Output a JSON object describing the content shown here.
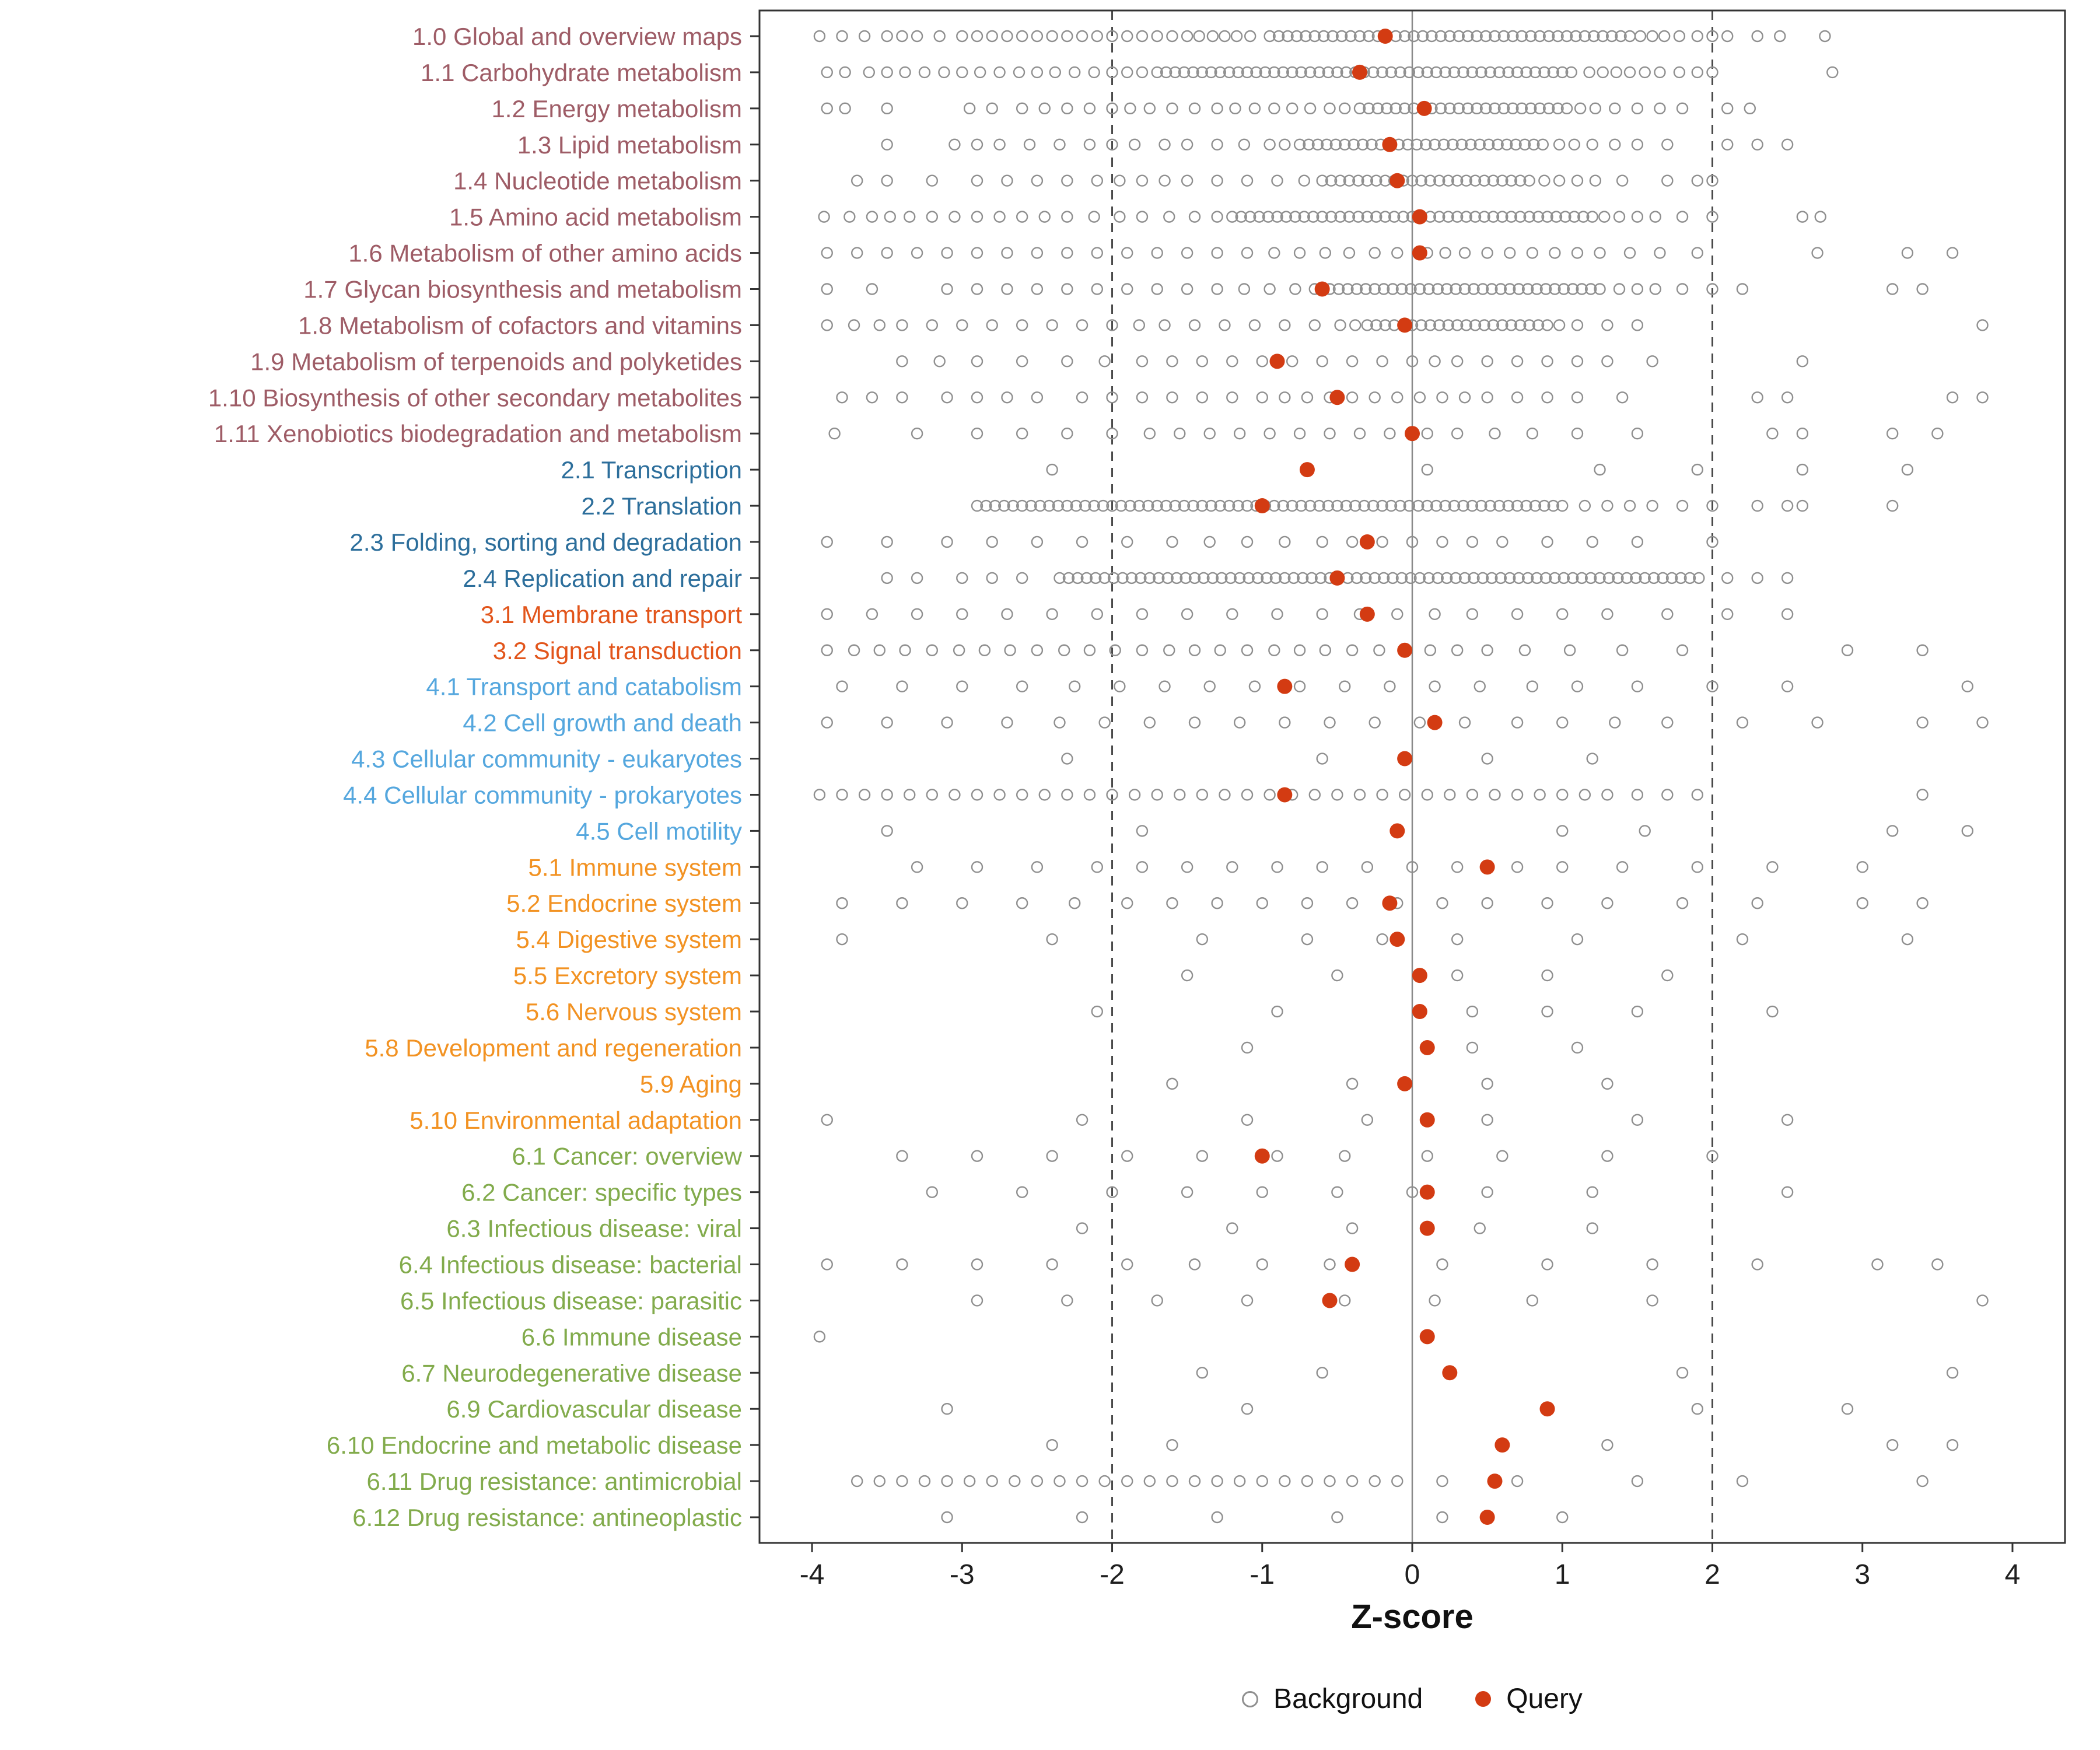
{
  "chart_data": {
    "type": "scatter",
    "subtype": "horizontal-dotplot",
    "title": "",
    "xlabel": "Z-score",
    "xlim": [
      -4.35,
      4.35
    ],
    "x_ticks": [
      -4,
      -3,
      -2,
      -1,
      0,
      1,
      2,
      3,
      4
    ],
    "reference_lines": {
      "solid": [
        0
      ],
      "dashed": [
        -2,
        2
      ]
    },
    "bg_dense_step": 0.06,
    "legend": [
      {
        "name": "Background",
        "marker": "open-circle",
        "color": "#8f8f8f"
      },
      {
        "name": "Query",
        "marker": "filled-circle",
        "color": "#d33b12"
      }
    ],
    "legend_position": "bottom",
    "group_colors": {
      "1": "#9e5c66",
      "2": "#2c6e9b",
      "3": "#e2551b",
      "4": "#55a7de",
      "5": "#f29222",
      "6": "#82ab4c"
    },
    "colors": {
      "background": "#8f8f8f",
      "query": "#d33b12",
      "dashed_line": "#4a4a4a",
      "zero_line": "#8a8a8a",
      "panel_border": "#333333",
      "tick_text": "#1f1f1f"
    },
    "rows": [
      {
        "label": "1.0 Global and overview maps",
        "group": "1",
        "query": -0.18,
        "bg_dense": [
          [
            -0.95,
            1.45
          ]
        ],
        "bg_scatter": [
          -3.95,
          -3.8,
          -3.65,
          -3.5,
          -3.4,
          -3.3,
          -3.15,
          -3.0,
          -2.9,
          -2.8,
          -2.7,
          -2.6,
          -2.5,
          -2.4,
          -2.3,
          -2.2,
          -2.1,
          -2.0,
          -1.9,
          -1.8,
          -1.7,
          -1.6,
          -1.5,
          -1.42,
          -1.33,
          -1.25,
          -1.17,
          -1.08,
          1.52,
          1.6,
          1.68,
          1.78,
          1.9,
          2.0,
          2.1,
          2.3,
          2.45,
          2.75
        ]
      },
      {
        "label": "1.1 Carbohydrate metabolism",
        "group": "1",
        "query": -0.35,
        "bg_dense": [
          [
            -1.7,
            1.1
          ]
        ],
        "bg_scatter": [
          -3.9,
          -3.78,
          -3.62,
          -3.5,
          -3.38,
          -3.25,
          -3.12,
          -3.0,
          -2.88,
          -2.75,
          -2.62,
          -2.5,
          -2.38,
          -2.25,
          -2.12,
          -2.0,
          -1.9,
          -1.8,
          1.18,
          1.27,
          1.36,
          1.45,
          1.55,
          1.65,
          1.78,
          1.9,
          2.0,
          2.8
        ]
      },
      {
        "label": "1.2 Energy metabolism",
        "group": "1",
        "query": 0.08,
        "bg_dense": [
          [
            -0.35,
            1.05
          ]
        ],
        "bg_scatter": [
          -3.9,
          -3.78,
          -3.5,
          -2.95,
          -2.8,
          -2.6,
          -2.45,
          -2.3,
          -2.15,
          -2.0,
          -1.88,
          -1.75,
          -1.6,
          -1.45,
          -1.3,
          -1.18,
          -1.05,
          -0.92,
          -0.8,
          -0.68,
          -0.55,
          -0.45,
          1.12,
          1.22,
          1.35,
          1.5,
          1.65,
          1.8,
          2.1,
          2.25
        ]
      },
      {
        "label": "1.3 Lipid metabolism",
        "group": "1",
        "query": -0.15,
        "bg_dense": [
          [
            -0.75,
            0.9
          ]
        ],
        "bg_scatter": [
          -3.5,
          -3.05,
          -2.9,
          -2.75,
          -2.55,
          -2.35,
          -2.15,
          -2.0,
          -1.85,
          -1.65,
          -1.5,
          -1.3,
          -1.12,
          -0.95,
          -0.85,
          0.98,
          1.08,
          1.2,
          1.35,
          1.5,
          1.7,
          2.1,
          2.3,
          2.5
        ]
      },
      {
        "label": "1.4 Nucleotide metabolism",
        "group": "1",
        "query": -0.1,
        "bg_dense": [
          [
            -0.6,
            0.8
          ]
        ],
        "bg_scatter": [
          -3.7,
          -3.5,
          -3.2,
          -2.9,
          -2.7,
          -2.5,
          -2.3,
          -2.1,
          -1.95,
          -1.8,
          -1.65,
          -1.5,
          -1.3,
          -1.1,
          -0.9,
          -0.72,
          0.88,
          0.98,
          1.1,
          1.22,
          1.4,
          1.7,
          1.9,
          2.0
        ]
      },
      {
        "label": "1.5 Amino acid metabolism",
        "group": "1",
        "query": 0.05,
        "bg_dense": [
          [
            -1.2,
            1.2
          ]
        ],
        "bg_scatter": [
          -3.92,
          -3.75,
          -3.6,
          -3.48,
          -3.35,
          -3.2,
          -3.05,
          -2.9,
          -2.75,
          -2.6,
          -2.45,
          -2.3,
          -2.12,
          -1.95,
          -1.8,
          -1.62,
          -1.45,
          -1.3,
          1.28,
          1.38,
          1.5,
          1.62,
          1.8,
          2.0,
          2.6,
          2.72
        ]
      },
      {
        "label": "1.6 Metabolism of other amino acids",
        "group": "1",
        "query": 0.05,
        "bg_dense": [],
        "bg_scatter": [
          -3.9,
          -3.7,
          -3.5,
          -3.3,
          -3.1,
          -2.9,
          -2.7,
          -2.5,
          -2.3,
          -2.1,
          -1.9,
          -1.7,
          -1.5,
          -1.3,
          -1.1,
          -0.92,
          -0.75,
          -0.58,
          -0.42,
          -0.25,
          -0.1,
          0.1,
          0.22,
          0.35,
          0.5,
          0.65,
          0.8,
          0.95,
          1.1,
          1.25,
          1.45,
          1.65,
          1.9,
          2.7,
          3.3,
          3.6
        ]
      },
      {
        "label": "1.7 Glycan biosynthesis and metabolism",
        "group": "1",
        "query": -0.6,
        "bg_dense": [
          [
            -0.55,
            1.3
          ]
        ],
        "bg_scatter": [
          -3.9,
          -3.6,
          -3.1,
          -2.9,
          -2.7,
          -2.5,
          -2.3,
          -2.1,
          -1.9,
          -1.7,
          -1.5,
          -1.3,
          -1.12,
          -0.95,
          -0.78,
          -0.65,
          1.38,
          1.5,
          1.62,
          1.8,
          2.0,
          2.2,
          3.2,
          3.4
        ]
      },
      {
        "label": "1.8 Metabolism of cofactors and vitamins",
        "group": "1",
        "query": -0.05,
        "bg_dense": [
          [
            -0.3,
            0.9
          ]
        ],
        "bg_scatter": [
          -3.9,
          -3.72,
          -3.55,
          -3.4,
          -3.2,
          -3.0,
          -2.8,
          -2.6,
          -2.4,
          -2.2,
          -2.0,
          -1.82,
          -1.65,
          -1.45,
          -1.25,
          -1.05,
          -0.85,
          -0.65,
          -0.48,
          -0.38,
          0.98,
          1.1,
          1.3,
          1.5,
          3.8
        ]
      },
      {
        "label": "1.9 Metabolism of terpenoids and polyketides",
        "group": "1",
        "query": -0.9,
        "bg_dense": [],
        "bg_scatter": [
          -3.4,
          -3.15,
          -2.9,
          -2.6,
          -2.3,
          -2.05,
          -1.8,
          -1.6,
          -1.4,
          -1.2,
          -1.0,
          -0.8,
          -0.6,
          -0.4,
          -0.2,
          0.0,
          0.15,
          0.3,
          0.5,
          0.7,
          0.9,
          1.1,
          1.3,
          1.6,
          2.6
        ]
      },
      {
        "label": "1.10 Biosynthesis of other secondary metabolites",
        "group": "1",
        "query": -0.5,
        "bg_dense": [],
        "bg_scatter": [
          -3.8,
          -3.6,
          -3.4,
          -3.1,
          -2.9,
          -2.7,
          -2.5,
          -2.2,
          -2.0,
          -1.8,
          -1.6,
          -1.4,
          -1.2,
          -1.0,
          -0.85,
          -0.7,
          -0.55,
          -0.4,
          -0.25,
          -0.1,
          0.05,
          0.2,
          0.35,
          0.5,
          0.7,
          0.9,
          1.1,
          1.4,
          2.3,
          2.5,
          3.6,
          3.8
        ]
      },
      {
        "label": "1.11 Xenobiotics biodegradation and metabolism",
        "group": "1",
        "query": 0.0,
        "bg_dense": [],
        "bg_scatter": [
          -3.85,
          -3.3,
          -2.9,
          -2.6,
          -2.3,
          -2.0,
          -1.75,
          -1.55,
          -1.35,
          -1.15,
          -0.95,
          -0.75,
          -0.55,
          -0.35,
          -0.15,
          0.1,
          0.3,
          0.55,
          0.8,
          1.1,
          1.5,
          2.4,
          2.6,
          3.2,
          3.5
        ]
      },
      {
        "label": "2.1 Transcription",
        "group": "2",
        "query": -0.7,
        "bg_dense": [],
        "bg_scatter": [
          -2.4,
          0.1,
          1.25,
          1.9,
          2.6,
          3.3
        ]
      },
      {
        "label": "2.2 Translation",
        "group": "2",
        "query": -1.0,
        "bg_dense": [
          [
            -2.9,
            1.05
          ]
        ],
        "bg_scatter": [
          1.15,
          1.3,
          1.45,
          1.6,
          1.8,
          2.0,
          2.3,
          2.5,
          2.6,
          3.2
        ]
      },
      {
        "label": "2.3 Folding, sorting and degradation",
        "group": "2",
        "query": -0.3,
        "bg_dense": [],
        "bg_scatter": [
          -3.9,
          -3.5,
          -3.1,
          -2.8,
          -2.5,
          -2.2,
          -1.9,
          -1.6,
          -1.35,
          -1.1,
          -0.85,
          -0.6,
          -0.4,
          -0.2,
          0.0,
          0.2,
          0.4,
          0.6,
          0.9,
          1.2,
          1.5,
          2.0
        ]
      },
      {
        "label": "2.4 Replication and repair",
        "group": "2",
        "query": -0.5,
        "bg_dense": [
          [
            -2.35,
            1.95
          ]
        ],
        "bg_scatter": [
          -3.5,
          -3.3,
          -3.0,
          -2.8,
          -2.6,
          2.1,
          2.3,
          2.5
        ]
      },
      {
        "label": "3.1 Membrane transport",
        "group": "3",
        "query": -0.3,
        "bg_dense": [],
        "bg_scatter": [
          -3.9,
          -3.6,
          -3.3,
          -3.0,
          -2.7,
          -2.4,
          -2.1,
          -1.8,
          -1.5,
          -1.2,
          -0.9,
          -0.6,
          -0.35,
          -0.1,
          0.15,
          0.4,
          0.7,
          1.0,
          1.3,
          1.7,
          2.1,
          2.5
        ]
      },
      {
        "label": "3.2 Signal transduction",
        "group": "3",
        "query": -0.05,
        "bg_dense": [],
        "bg_scatter": [
          -3.9,
          -3.72,
          -3.55,
          -3.38,
          -3.2,
          -3.02,
          -2.85,
          -2.68,
          -2.5,
          -2.32,
          -2.15,
          -1.98,
          -1.8,
          -1.62,
          -1.45,
          -1.28,
          -1.1,
          -0.92,
          -0.75,
          -0.58,
          -0.4,
          -0.22,
          -0.05,
          0.12,
          0.3,
          0.5,
          0.75,
          1.05,
          1.4,
          1.8,
          2.9,
          3.4
        ]
      },
      {
        "label": "4.1 Transport and catabolism",
        "group": "4",
        "query": -0.85,
        "bg_dense": [],
        "bg_scatter": [
          -3.8,
          -3.4,
          -3.0,
          -2.6,
          -2.25,
          -1.95,
          -1.65,
          -1.35,
          -1.05,
          -0.75,
          -0.45,
          -0.15,
          0.15,
          0.45,
          0.8,
          1.1,
          1.5,
          2.0,
          2.5,
          3.7
        ]
      },
      {
        "label": "4.2 Cell growth and death",
        "group": "4",
        "query": 0.15,
        "bg_dense": [],
        "bg_scatter": [
          -3.9,
          -3.5,
          -3.1,
          -2.7,
          -2.35,
          -2.05,
          -1.75,
          -1.45,
          -1.15,
          -0.85,
          -0.55,
          -0.25,
          0.05,
          0.35,
          0.7,
          1.0,
          1.35,
          1.7,
          2.2,
          2.7,
          3.4,
          3.8
        ]
      },
      {
        "label": "4.3 Cellular community - eukaryotes",
        "group": "4",
        "query": -0.05,
        "bg_dense": [],
        "bg_scatter": [
          -2.3,
          -0.6,
          0.5,
          1.2
        ]
      },
      {
        "label": "4.4 Cellular community - prokaryotes",
        "group": "4",
        "query": -0.85,
        "bg_dense": [],
        "bg_scatter": [
          -3.95,
          -3.8,
          -3.65,
          -3.5,
          -3.35,
          -3.2,
          -3.05,
          -2.9,
          -2.75,
          -2.6,
          -2.45,
          -2.3,
          -2.15,
          -2.0,
          -1.85,
          -1.7,
          -1.55,
          -1.4,
          -1.25,
          -1.1,
          -0.95,
          -0.8,
          -0.65,
          -0.5,
          -0.35,
          -0.2,
          -0.05,
          0.1,
          0.25,
          0.4,
          0.55,
          0.7,
          0.85,
          1.0,
          1.15,
          1.3,
          1.5,
          1.7,
          1.9,
          3.4
        ]
      },
      {
        "label": "4.5 Cell motility",
        "group": "4",
        "query": -0.1,
        "bg_dense": [],
        "bg_scatter": [
          -3.5,
          -1.8,
          1.0,
          1.55,
          3.2,
          3.7
        ]
      },
      {
        "label": "5.1 Immune system",
        "group": "5",
        "query": 0.5,
        "bg_dense": [],
        "bg_scatter": [
          -3.3,
          -2.9,
          -2.5,
          -2.1,
          -1.8,
          -1.5,
          -1.2,
          -0.9,
          -0.6,
          -0.3,
          0.0,
          0.3,
          0.7,
          1.0,
          1.4,
          1.9,
          2.4,
          3.0
        ]
      },
      {
        "label": "5.2 Endocrine system",
        "group": "5",
        "query": -0.15,
        "bg_dense": [],
        "bg_scatter": [
          -3.8,
          -3.4,
          -3.0,
          -2.6,
          -2.25,
          -1.9,
          -1.6,
          -1.3,
          -1.0,
          -0.7,
          -0.4,
          -0.1,
          0.2,
          0.5,
          0.9,
          1.3,
          1.8,
          2.3,
          3.0,
          3.4
        ]
      },
      {
        "label": "5.4 Digestive system",
        "group": "5",
        "query": -0.1,
        "bg_dense": [],
        "bg_scatter": [
          -3.8,
          -2.4,
          -1.4,
          -0.7,
          -0.2,
          0.3,
          1.1,
          2.2,
          3.3
        ]
      },
      {
        "label": "5.5 Excretory system",
        "group": "5",
        "query": 0.05,
        "bg_dense": [],
        "bg_scatter": [
          -1.5,
          -0.5,
          0.3,
          0.9,
          1.7
        ]
      },
      {
        "label": "5.6 Nervous system",
        "group": "5",
        "query": 0.05,
        "bg_dense": [],
        "bg_scatter": [
          -2.1,
          -0.9,
          0.4,
          0.9,
          1.5,
          2.4
        ]
      },
      {
        "label": "5.8 Development and regeneration",
        "group": "5",
        "query": 0.1,
        "bg_dense": [],
        "bg_scatter": [
          -1.1,
          0.4,
          1.1
        ]
      },
      {
        "label": "5.9 Aging",
        "group": "5",
        "query": -0.05,
        "bg_dense": [],
        "bg_scatter": [
          -1.6,
          -0.4,
          0.5,
          1.3
        ]
      },
      {
        "label": "5.10 Environmental adaptation",
        "group": "5",
        "query": 0.1,
        "bg_dense": [],
        "bg_scatter": [
          -3.9,
          -2.2,
          -1.1,
          -0.3,
          0.5,
          1.5,
          2.5
        ]
      },
      {
        "label": "6.1 Cancer: overview",
        "group": "6",
        "query": -1.0,
        "bg_dense": [],
        "bg_scatter": [
          -3.4,
          -2.9,
          -2.4,
          -1.9,
          -1.4,
          -0.9,
          -0.45,
          0.1,
          0.6,
          1.3,
          2.0
        ]
      },
      {
        "label": "6.2 Cancer: specific types",
        "group": "6",
        "query": 0.1,
        "bg_dense": [],
        "bg_scatter": [
          -3.2,
          -2.6,
          -2.0,
          -1.5,
          -1.0,
          -0.5,
          0.0,
          0.5,
          1.2,
          2.5
        ]
      },
      {
        "label": "6.3 Infectious disease: viral",
        "group": "6",
        "query": 0.1,
        "bg_dense": [],
        "bg_scatter": [
          -2.2,
          -1.2,
          -0.4,
          0.45,
          1.2
        ]
      },
      {
        "label": "6.4 Infectious disease: bacterial",
        "group": "6",
        "query": -0.4,
        "bg_dense": [],
        "bg_scatter": [
          -3.9,
          -3.4,
          -2.9,
          -2.4,
          -1.9,
          -1.45,
          -1.0,
          -0.55,
          0.2,
          0.9,
          1.6,
          2.3,
          3.1,
          3.5
        ]
      },
      {
        "label": "6.5 Infectious disease: parasitic",
        "group": "6",
        "query": -0.55,
        "bg_dense": [],
        "bg_scatter": [
          -2.9,
          -2.3,
          -1.7,
          -1.1,
          -0.45,
          0.15,
          0.8,
          1.6,
          3.8
        ]
      },
      {
        "label": "6.6 Immune disease",
        "group": "6",
        "query": 0.1,
        "bg_dense": [],
        "bg_scatter": [
          -3.95
        ]
      },
      {
        "label": "6.7 Neurodegenerative disease",
        "group": "6",
        "query": 0.25,
        "bg_dense": [],
        "bg_scatter": [
          -1.4,
          -0.6,
          1.8,
          3.6
        ]
      },
      {
        "label": "6.9 Cardiovascular disease",
        "group": "6",
        "query": 0.9,
        "bg_dense": [],
        "bg_scatter": [
          -3.1,
          -1.1,
          1.9,
          2.9
        ]
      },
      {
        "label": "6.10 Endocrine and metabolic disease",
        "group": "6",
        "query": 0.6,
        "bg_dense": [],
        "bg_scatter": [
          -2.4,
          -1.6,
          1.3,
          3.2,
          3.6
        ]
      },
      {
        "label": "6.11 Drug resistance: antimicrobial",
        "group": "6",
        "query": 0.55,
        "bg_dense": [],
        "bg_scatter": [
          -3.7,
          -3.55,
          -3.4,
          -3.25,
          -3.1,
          -2.95,
          -2.8,
          -2.65,
          -2.5,
          -2.35,
          -2.2,
          -2.05,
          -1.9,
          -1.75,
          -1.6,
          -1.45,
          -1.3,
          -1.15,
          -1.0,
          -0.85,
          -0.7,
          -0.55,
          -0.4,
          -0.25,
          -0.1,
          0.2,
          0.7,
          1.5,
          2.2,
          3.4
        ]
      },
      {
        "label": "6.12 Drug resistance: antineoplastic",
        "group": "6",
        "query": 0.5,
        "bg_dense": [],
        "bg_scatter": [
          -3.1,
          -2.2,
          -1.3,
          -0.5,
          0.2,
          1.0
        ]
      }
    ]
  }
}
